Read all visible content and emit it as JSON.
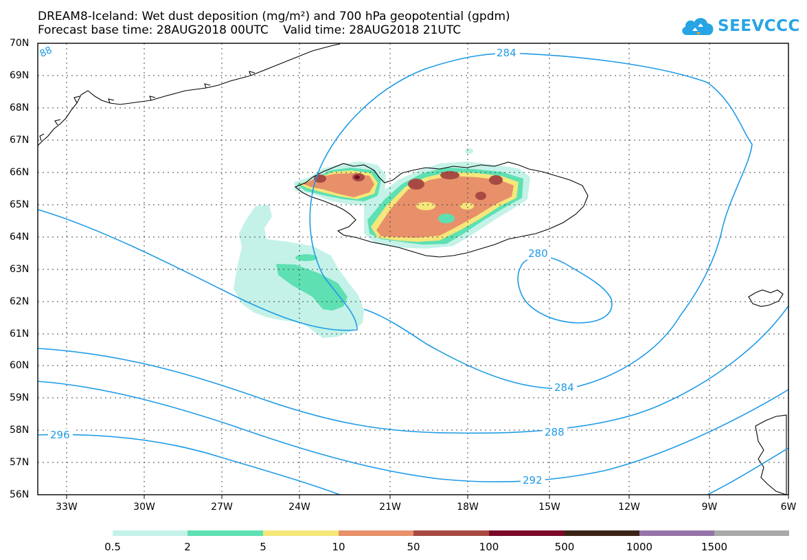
{
  "title": {
    "line1": "DREAM8-Iceland: Wet dust deposition (mg/m²) and 700 hPa geopotential (gpdm)",
    "line2": "Forecast base time: 28AUG2018 00UTC    Valid time: 28AUG2018 21UTC"
  },
  "logo": {
    "text": "SEEVCCC",
    "icon": "cloud-logo-icon",
    "color": "#27a4e4"
  },
  "axes": {
    "lat_labels": [
      "70N",
      "69N",
      "68N",
      "67N",
      "66N",
      "65N",
      "64N",
      "63N",
      "62N",
      "61N",
      "60N",
      "59N",
      "58N",
      "57N",
      "56N"
    ],
    "lon_labels": [
      "33W",
      "30W",
      "27W",
      "24W",
      "21W",
      "18W",
      "15W",
      "12W",
      "9W",
      "6W"
    ]
  },
  "contours": {
    "color": "#1e9be6",
    "labels": [
      "284",
      "280",
      "284",
      "288",
      "292",
      "296",
      "88"
    ]
  },
  "colorbar": {
    "colors": [
      "#c4f2e8",
      "#5ee0b2",
      "#f5e77a",
      "#e7906a",
      "#a84a44",
      "#7a0a28",
      "#3a2416",
      "#9574a8",
      "#a9a9a9"
    ],
    "labels": [
      "0.5",
      "2",
      "5",
      "10",
      "50",
      "100",
      "500",
      "1000",
      "1500"
    ]
  }
}
